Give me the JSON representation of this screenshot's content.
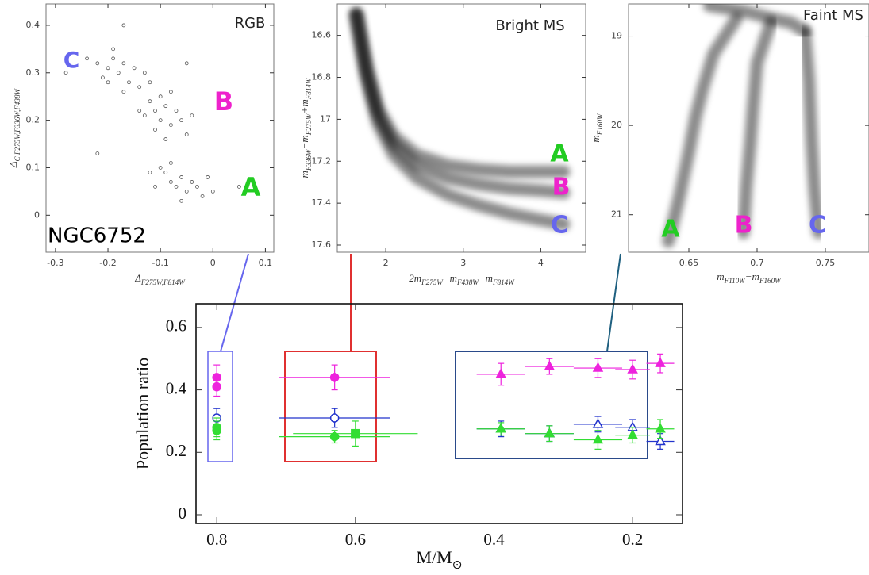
{
  "chart_data": [
    {
      "type": "scatter",
      "xlim": [
        -0.318,
        0.116
      ],
      "ylim": [
        -0.078,
        0.445
      ],
      "xticks": [
        -0.3,
        -0.2,
        -0.1,
        0,
        0.1
      ],
      "yticks": [
        0,
        0.1,
        0.2,
        0.3,
        0.4
      ],
      "x_label": [
        "Δ",
        "F275W,F814W"
      ],
      "y_label": [
        "Δ",
        "C F275W,F336W,F438W"
      ],
      "color": "#555555",
      "x": [
        -0.22,
        -0.2,
        -0.19,
        -0.18,
        -0.17,
        -0.21,
        -0.16,
        -0.15,
        -0.19,
        -0.24,
        -0.13,
        -0.14,
        -0.17,
        -0.12,
        -0.2,
        -0.11,
        -0.1,
        -0.09,
        -0.12,
        -0.08,
        -0.1,
        -0.13,
        -0.07,
        -0.06,
        -0.11,
        -0.05,
        -0.09,
        -0.04,
        -0.14,
        -0.08,
        -0.08,
        -0.07,
        -0.06,
        -0.09,
        -0.05,
        -0.04,
        -0.1,
        -0.03,
        -0.11,
        -0.02,
        -0.06,
        -0.12,
        -0.01,
        0,
        -0.08,
        -0.28,
        -0.22,
        -0.05,
        0.05,
        -0.17
      ],
      "values": [
        0.32,
        0.31,
        0.33,
        0.3,
        0.32,
        0.29,
        0.28,
        0.31,
        0.35,
        0.33,
        0.3,
        0.27,
        0.26,
        0.28,
        0.28,
        0.22,
        0.2,
        0.23,
        0.24,
        0.19,
        0.25,
        0.21,
        0.22,
        0.2,
        0.18,
        0.17,
        0.16,
        0.21,
        0.22,
        0.26,
        0.07,
        0.06,
        0.08,
        0.09,
        0.05,
        0.07,
        0.1,
        0.06,
        0.06,
        0.04,
        0.03,
        0.09,
        0.08,
        0.05,
        0.11,
        0.3,
        0.13,
        0.32,
        0.06,
        0.4
      ],
      "annotations": [
        {
          "text": "RGB",
          "color": "#222222"
        },
        {
          "text": "NGC6752",
          "color": "#000000"
        },
        {
          "text": "C",
          "color": "#6666ee"
        },
        {
          "text": "B",
          "color": "#ee22cc"
        },
        {
          "text": "A",
          "color": "#22cc22"
        }
      ]
    },
    {
      "type": "density",
      "xlim": [
        1.374,
        4.58
      ],
      "ylim": [
        17.634,
        16.45
      ],
      "xticks": [
        2,
        3,
        4
      ],
      "yticks": [
        16.6,
        16.8,
        17,
        17.2,
        17.4,
        17.6
      ],
      "x_label": [
        "2m",
        "F275W",
        "−m",
        "F438W",
        "−m",
        "F814W"
      ],
      "y_label": [
        "m",
        "F336W",
        "−m",
        "F275W",
        "+m",
        "F814W"
      ],
      "color": "#000000",
      "series": [
        {
          "x": [
            1.62,
            1.75,
            1.9,
            2.1,
            2.4,
            2.8,
            3.2,
            3.6,
            4.0,
            4.3
          ],
          "values": [
            16.5,
            16.75,
            16.95,
            17.08,
            17.17,
            17.22,
            17.24,
            17.25,
            17.25,
            17.25
          ]
        },
        {
          "x": [
            1.62,
            1.75,
            1.9,
            2.1,
            2.4,
            2.8,
            3.2,
            3.6,
            4.0,
            4.3
          ],
          "values": [
            16.5,
            16.77,
            16.98,
            17.12,
            17.22,
            17.28,
            17.31,
            17.33,
            17.34,
            17.35
          ]
        },
        {
          "x": [
            1.62,
            1.75,
            1.9,
            2.1,
            2.4,
            2.8,
            3.2,
            3.6,
            4.0,
            4.3
          ],
          "values": [
            16.5,
            16.8,
            17.02,
            17.17,
            17.28,
            17.36,
            17.41,
            17.45,
            17.48,
            17.5
          ]
        }
      ],
      "annotations": [
        {
          "text": "Bright MS",
          "color": "#222222"
        },
        {
          "text": "A",
          "color": "#22cc22"
        },
        {
          "text": "B",
          "color": "#ee22cc"
        },
        {
          "text": "C",
          "color": "#6666ee"
        }
      ]
    },
    {
      "type": "density",
      "xlim": [
        0.6058,
        0.782
      ],
      "ylim": [
        21.42,
        18.64
      ],
      "xticks": [
        0.65,
        0.7,
        0.75
      ],
      "yticks": [
        19,
        20,
        21
      ],
      "x_label": [
        "m",
        "F110W",
        "−m",
        "F160W"
      ],
      "y_label": [
        "m",
        "F160W"
      ],
      "color": "#000000",
      "series": [
        {
          "x": [
            0.665,
            0.69,
            0.71,
            0.725,
            0.735
          ],
          "values": [
            18.66,
            18.72,
            18.8,
            18.85,
            18.95
          ]
        },
        {
          "x": [
            0.685,
            0.668,
            0.66,
            0.655,
            0.65,
            0.643,
            0.635
          ],
          "values": [
            18.8,
            19.2,
            19.6,
            19.9,
            20.3,
            20.8,
            21.3
          ]
        },
        {
          "x": [
            0.71,
            0.7,
            0.697,
            0.695,
            0.692,
            0.69
          ],
          "values": [
            18.85,
            19.3,
            19.8,
            20.2,
            20.7,
            21.2
          ]
        },
        {
          "x": [
            0.735,
            0.738,
            0.74,
            0.742,
            0.745
          ],
          "values": [
            18.95,
            19.5,
            20.2,
            20.7,
            21.2
          ]
        }
      ],
      "annotations": [
        {
          "text": "Faint MS",
          "color": "#222222"
        },
        {
          "text": "A",
          "color": "#22cc22"
        },
        {
          "text": "B",
          "color": "#ee22cc"
        },
        {
          "text": "C",
          "color": "#6666ee"
        }
      ]
    },
    {
      "type": "errorbar",
      "xlim": [
        0.83,
        0.128
      ],
      "ylim": [
        -0.028,
        0.676
      ],
      "xticks": [
        0.8,
        0.6,
        0.4,
        0.2
      ],
      "yticks": [
        0,
        0.2,
        0.4,
        0.6
      ],
      "x_label": [
        "M/M",
        "⊙"
      ],
      "y_label": [
        "Population ratio"
      ],
      "series": [
        {
          "color": "#ee22dd",
          "x": [
            0.8,
            0.8,
            0.63,
            0.39,
            0.32,
            0.25,
            0.2,
            0.16
          ],
          "values": [
            0.44,
            0.41,
            0.44,
            0.45,
            0.475,
            0.47,
            0.465,
            0.485
          ],
          "errors": [
            0.04,
            0.03,
            0.04,
            0.035,
            0.025,
            0.03,
            0.03,
            0.03
          ],
          "xerr": [
            0,
            0,
            0.08,
            0.035,
            0.035,
            0.035,
            0.025,
            0.02
          ],
          "markers": [
            "circle",
            "circle",
            "circle",
            "triangle",
            "triangle",
            "triangle",
            "triangle",
            "triangle"
          ]
        },
        {
          "color": "#2233cc",
          "x": [
            0.8,
            0.63,
            0.39,
            0.32,
            0.25,
            0.2,
            0.16
          ],
          "values": [
            0.31,
            0.31,
            0.275,
            0.26,
            0.29,
            0.28,
            0.235
          ],
          "errors": [
            0.03,
            0.03,
            0.025,
            0.025,
            0.025,
            0.025,
            0.025
          ],
          "xerr": [
            0,
            0.08,
            0.035,
            0.035,
            0.035,
            0.025,
            0.02
          ],
          "markers": [
            "open-circle",
            "open-circle",
            "open-triangle",
            "open-triangle",
            "open-triangle",
            "open-triangle",
            "open-triangle"
          ]
        },
        {
          "color": "#33dd33",
          "x": [
            0.8,
            0.8,
            0.63,
            0.6,
            0.39,
            0.32,
            0.25,
            0.2,
            0.16
          ],
          "values": [
            0.28,
            0.27,
            0.25,
            0.26,
            0.275,
            0.26,
            0.24,
            0.255,
            0.275
          ],
          "errors": [
            0.03,
            0.03,
            0.02,
            0.04,
            0.02,
            0.025,
            0.03,
            0.025,
            0.03
          ],
          "xerr": [
            0,
            0,
            0.08,
            0.09,
            0.035,
            0.035,
            0.035,
            0.025,
            0.02
          ],
          "markers": [
            "circle",
            "circle",
            "circle",
            "square",
            "triangle",
            "triangle",
            "triangle",
            "triangle",
            "triangle"
          ]
        }
      ]
    }
  ]
}
